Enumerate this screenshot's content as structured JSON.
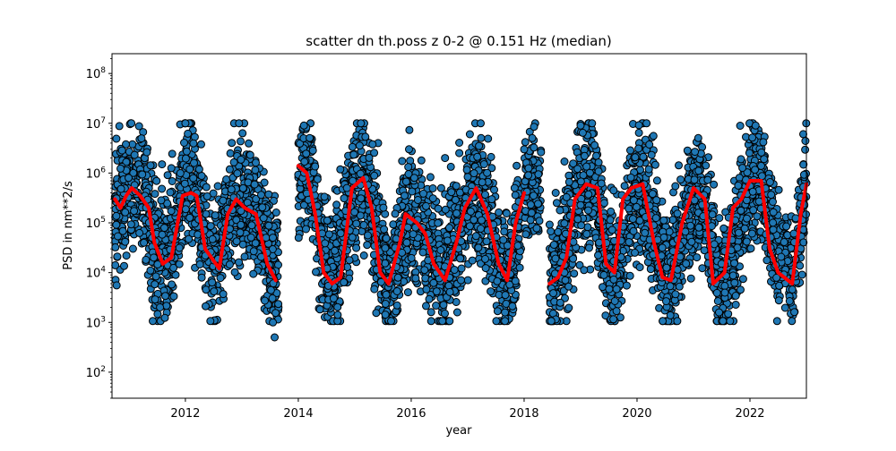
{
  "chart_data": {
    "type": "scatter",
    "title": "scatter dn th.poss z 0-2 @ 0.151 Hz (median)",
    "xlabel": "year",
    "ylabel": "PSD in nm**2/s",
    "xlim": [
      2010.7,
      2023.0
    ],
    "ylim": [
      30,
      250000000
    ],
    "yscale": "log",
    "grid": false,
    "legend": "none",
    "x_ticks": [
      {
        "value": 2012,
        "label": "2012"
      },
      {
        "value": 2014,
        "label": "2014"
      },
      {
        "value": 2016,
        "label": "2016"
      },
      {
        "value": 2018,
        "label": "2018"
      },
      {
        "value": 2020,
        "label": "2020"
      },
      {
        "value": 2022,
        "label": "2022"
      }
    ],
    "y_ticks": [
      {
        "value": 100,
        "base": "10",
        "exp": "2"
      },
      {
        "value": 1000,
        "base": "10",
        "exp": "3"
      },
      {
        "value": 10000,
        "base": "10",
        "exp": "4"
      },
      {
        "value": 100000,
        "base": "10",
        "exp": "5"
      },
      {
        "value": 1000000,
        "base": "10",
        "exp": "6"
      },
      {
        "value": 10000000,
        "base": "10",
        "exp": "7"
      },
      {
        "value": 100000000,
        "base": "10",
        "exp": "8"
      }
    ],
    "colors": {
      "points": "#1f77b4",
      "point_edge": "#000000",
      "median_line": "#ff0000"
    },
    "scatter_envelope": [
      {
        "segment": [
          2010.75,
          2013.65
        ],
        "spread": 1.15,
        "points": [
          [
            2010.75,
            150000
          ],
          [
            2011.0,
            600000
          ],
          [
            2011.25,
            350000
          ],
          [
            2011.45,
            30000
          ],
          [
            2011.6,
            20000
          ],
          [
            2011.8,
            60000
          ],
          [
            2012.0,
            800000
          ],
          [
            2012.15,
            500000
          ],
          [
            2012.3,
            80000
          ],
          [
            2012.45,
            15000
          ],
          [
            2012.65,
            40000
          ],
          [
            2012.85,
            300000
          ],
          [
            2013.05,
            400000
          ],
          [
            2013.3,
            150000
          ],
          [
            2013.5,
            20000
          ],
          [
            2013.65,
            8000
          ]
        ]
      },
      {
        "segment": [
          2014.0,
          2017.95
        ],
        "spread": 1.15,
        "points": [
          [
            2014.0,
            1000000
          ],
          [
            2014.2,
            1000000
          ],
          [
            2014.4,
            30000
          ],
          [
            2014.6,
            6000
          ],
          [
            2014.8,
            60000
          ],
          [
            2015.0,
            500000
          ],
          [
            2015.15,
            1000000
          ],
          [
            2015.35,
            100000
          ],
          [
            2015.6,
            7000
          ],
          [
            2015.85,
            50000
          ],
          [
            2016.0,
            150000
          ],
          [
            2016.3,
            50000
          ],
          [
            2016.55,
            8000
          ],
          [
            2016.8,
            40000
          ],
          [
            2017.1,
            500000
          ],
          [
            2017.35,
            150000
          ],
          [
            2017.6,
            8000
          ],
          [
            2017.8,
            20000
          ],
          [
            2017.95,
            150000
          ]
        ]
      },
      {
        "segment": [
          2018.0,
          2018.3
        ],
        "spread": 1.0,
        "points": [
          [
            2018.0,
            500000
          ],
          [
            2018.3,
            600000
          ]
        ]
      },
      {
        "segment": [
          2018.45,
          2023.0
        ],
        "spread": 1.15,
        "points": [
          [
            2018.45,
            7000
          ],
          [
            2018.7,
            20000
          ],
          [
            2018.95,
            400000
          ],
          [
            2019.2,
            700000
          ],
          [
            2019.45,
            20000
          ],
          [
            2019.65,
            10000
          ],
          [
            2019.9,
            300000
          ],
          [
            2020.1,
            600000
          ],
          [
            2020.3,
            80000
          ],
          [
            2020.55,
            8000
          ],
          [
            2020.75,
            30000
          ],
          [
            2021.0,
            500000
          ],
          [
            2021.2,
            200000
          ],
          [
            2021.45,
            6000
          ],
          [
            2021.7,
            20000
          ],
          [
            2021.95,
            500000
          ],
          [
            2022.2,
            700000
          ],
          [
            2022.45,
            30000
          ],
          [
            2022.75,
            7000
          ],
          [
            2023.0,
            600000
          ]
        ]
      }
    ],
    "scatter_outliers": [
      [
        2013.55,
        1000
      ],
      [
        2013.58,
        500
      ],
      [
        2011.55,
        2000
      ],
      [
        2012.0,
        10000000
      ],
      [
        2012.95,
        10000000
      ],
      [
        2014.1,
        9000000
      ],
      [
        2017.2,
        3500000
      ],
      [
        2018.0,
        3000000
      ],
      [
        2019.0,
        9000000
      ],
      [
        2022.1,
        9000000
      ],
      [
        2016.6,
        2000000
      ]
    ],
    "series": [
      {
        "x": [
          2010.75,
          2010.85,
          2010.95,
          2011.05,
          2011.2,
          2011.35,
          2011.45,
          2011.6,
          2011.75,
          2011.95,
          2012.1,
          2012.2,
          2012.35,
          2012.6,
          2012.75,
          2012.9,
          2013.05,
          2013.25,
          2013.45,
          2013.6
        ],
        "y": [
          300000,
          200000,
          350000,
          500000,
          350000,
          200000,
          40000,
          15000,
          20000,
          350000,
          400000,
          350000,
          30000,
          12000,
          150000,
          300000,
          200000,
          150000,
          15000,
          7000
        ]
      },
      {
        "x": [
          2014.0,
          2014.15,
          2014.3,
          2014.45,
          2014.6,
          2014.75,
          2014.95,
          2015.15,
          2015.3,
          2015.45,
          2015.6,
          2015.8,
          2015.9,
          2016.1,
          2016.25,
          2016.4,
          2016.6,
          2016.8,
          2016.95,
          2017.15,
          2017.35,
          2017.55,
          2017.7,
          2017.85,
          2018.0
        ],
        "y": [
          1400000,
          1000000,
          150000,
          10000,
          6000,
          8000,
          500000,
          800000,
          200000,
          10000,
          6000,
          40000,
          150000,
          100000,
          60000,
          15000,
          7000,
          40000,
          200000,
          500000,
          150000,
          15000,
          7000,
          100000,
          400000
        ]
      },
      {
        "x": [
          2018.45,
          2018.6,
          2018.75,
          2018.9,
          2019.1,
          2019.3,
          2019.45,
          2019.6,
          2019.75,
          2019.9,
          2020.1,
          2020.3,
          2020.45,
          2020.6,
          2020.8,
          2021.0,
          2021.2,
          2021.35,
          2021.55,
          2021.7,
          2021.85,
          2022.0,
          2022.2,
          2022.35,
          2022.5,
          2022.75,
          2022.9,
          2023.0
        ],
        "y": [
          6000,
          8000,
          20000,
          300000,
          600000,
          500000,
          15000,
          10000,
          300000,
          500000,
          600000,
          40000,
          8000,
          7000,
          100000,
          500000,
          300000,
          6000,
          10000,
          200000,
          300000,
          700000,
          700000,
          30000,
          10000,
          6000,
          150000,
          600000
        ]
      }
    ]
  }
}
